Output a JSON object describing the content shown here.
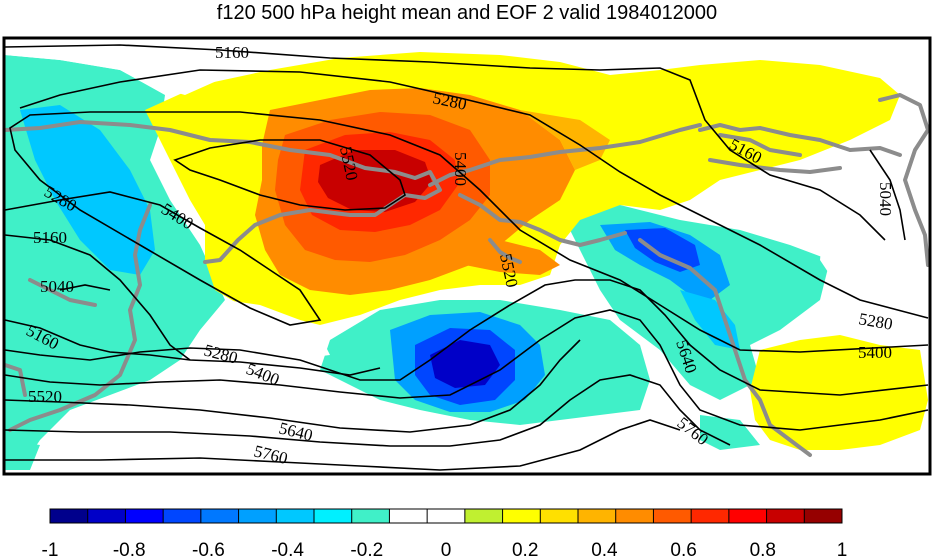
{
  "title": "f120 500 hPa height mean and EOF 2 valid 1984012000",
  "colors": {
    "ocean_bg": "#ffffff",
    "coast": "#8c8c8c",
    "contour": "#000000",
    "map_frame": "#000000"
  },
  "contour_labels": [
    "5160",
    "5280",
    "5520",
    "5400",
    "5160",
    "5040",
    "5280",
    "5160",
    "5400",
    "5040",
    "5160",
    "5280",
    "5400",
    "5520",
    "5520",
    "5640",
    "5760",
    "5640",
    "5760",
    "5280",
    "5400"
  ],
  "colorbar": {
    "ticks": [
      "-1",
      "-0.8",
      "-0.6",
      "-0.4",
      "-0.2",
      "0",
      "0.2",
      "0.4",
      "0.6",
      "0.8",
      "1"
    ],
    "bins": [
      "#00008c",
      "#0000c8",
      "#0000ff",
      "#0046ff",
      "#0078ff",
      "#00a0ff",
      "#00c8ff",
      "#00f0ff",
      "#40f0c8",
      "#ffffff",
      "#ffffff",
      "#c0f030",
      "#ffff00",
      "#ffe000",
      "#ffb400",
      "#ff8c00",
      "#ff5a00",
      "#ff2800",
      "#ff0000",
      "#c80000",
      "#960000"
    ]
  },
  "icons": [
    "coastline-icon"
  ]
}
